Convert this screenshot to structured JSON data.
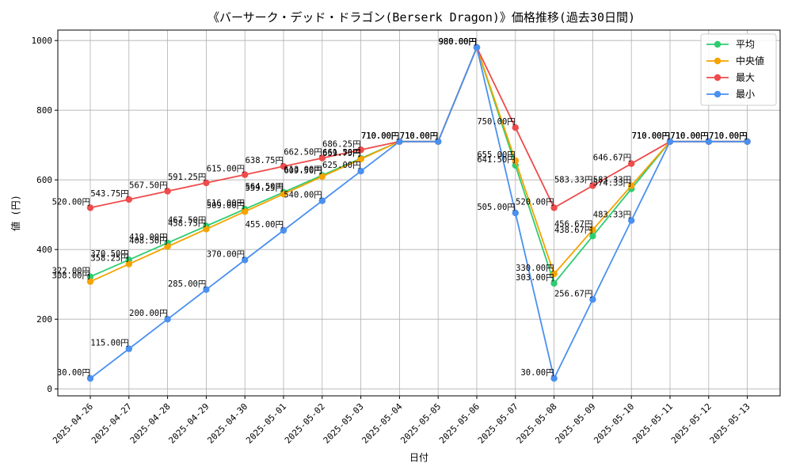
{
  "chart_data": {
    "type": "line",
    "title": "《バーサーク・デッド・ドラゴン(Berserk Dragon)》価格推移(過去30日間)",
    "xlabel": "日付",
    "ylabel": "値 (円)",
    "ylim": [
      -20,
      1030
    ],
    "yticks": [
      0,
      200,
      400,
      600,
      800,
      1000
    ],
    "grid": true,
    "legend_position": "top-right",
    "value_suffix": "円",
    "categories": [
      "2025-04-26",
      "2025-04-27",
      "2025-04-28",
      "2025-04-29",
      "2025-04-30",
      "2025-05-01",
      "2025-05-02",
      "2025-05-03",
      "2025-05-04",
      "2025-05-05",
      "2025-05-06",
      "2025-05-07",
      "2025-05-08",
      "2025-05-09",
      "2025-05-10",
      "2025-05-11",
      "2025-05-12",
      "2025-05-13"
    ],
    "series": [
      {
        "name": "平均",
        "color": "#2ecc71",
        "values": [
          322.0,
          370.5,
          419.0,
          467.5,
          516.0,
          564.5,
          613.0,
          661.5,
          710.0,
          710.0,
          980.0,
          641.5,
          303.0,
          438.67,
          574.33,
          710.0,
          710.0,
          710.0
        ]
      },
      {
        "name": "中央値",
        "color": "#f5a300",
        "values": [
          308.0,
          358.25,
          408.5,
          458.75,
          509.0,
          559.25,
          609.5,
          659.75,
          710.0,
          710.0,
          980.0,
          655.0,
          330.0,
          456.67,
          583.33,
          710.0,
          710.0,
          710.0
        ]
      },
      {
        "name": "最大",
        "color": "#ef4b4b",
        "values": [
          520.0,
          543.75,
          567.5,
          591.25,
          615.0,
          638.75,
          662.5,
          686.25,
          710.0,
          710.0,
          980.0,
          750.0,
          520.0,
          583.33,
          646.67,
          710.0,
          710.0,
          710.0
        ]
      },
      {
        "name": "最小",
        "color": "#4a90f0",
        "values": [
          30.0,
          115.0,
          200.0,
          285.0,
          370.0,
          455.0,
          540.0,
          625.0,
          710.0,
          710.0,
          980.0,
          505.0,
          30.0,
          256.67,
          483.33,
          710.0,
          710.0,
          710.0
        ]
      }
    ]
  }
}
